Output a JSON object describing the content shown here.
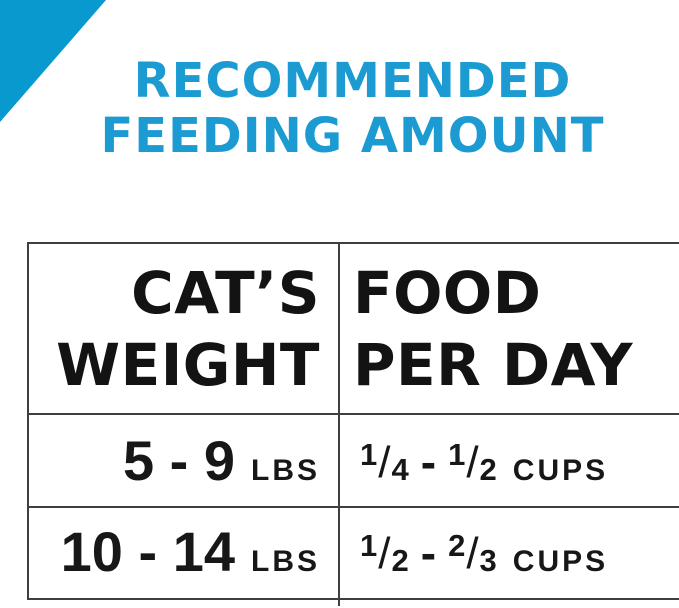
{
  "colors": {
    "accent_blue": "#0899CE",
    "heading_blue": "#1B9BD2",
    "border_gray": "#3F3F3F",
    "text_black": "#171717"
  },
  "heading": {
    "line1": "RECOMMENDED",
    "line2": "FEEDING AMOUNT"
  },
  "table": {
    "header": {
      "col1_lines": [
        "CAT’S",
        "WEIGHT"
      ],
      "col2_lines": [
        "FOOD",
        "PER DAY"
      ]
    },
    "rows": [
      {
        "weight_range": "5 - 9",
        "weight_unit": "LBS",
        "food": {
          "f1": {
            "num": "1",
            "slash": "/",
            "den": "4"
          },
          "sep": "-",
          "f2": {
            "num": "1",
            "slash": "/",
            "den": "2"
          },
          "unit": "CUPS"
        }
      },
      {
        "weight_range": "10 - 14",
        "weight_unit": "LBS",
        "food": {
          "f1": {
            "num": "1",
            "slash": "/",
            "den": "2"
          },
          "sep": "-",
          "f2": {
            "num": "2",
            "slash": "/",
            "den": "3"
          },
          "unit": "CUPS"
        }
      }
    ]
  },
  "chart_data": {
    "type": "table",
    "title": "RECOMMENDED FEEDING AMOUNT",
    "columns": [
      "CAT'S WEIGHT",
      "FOOD PER DAY"
    ],
    "rows": [
      [
        "5 - 9 LBS",
        "1/4 - 1/2 CUPS"
      ],
      [
        "10 - 14 LBS",
        "1/2 - 2/3 CUPS"
      ]
    ]
  }
}
